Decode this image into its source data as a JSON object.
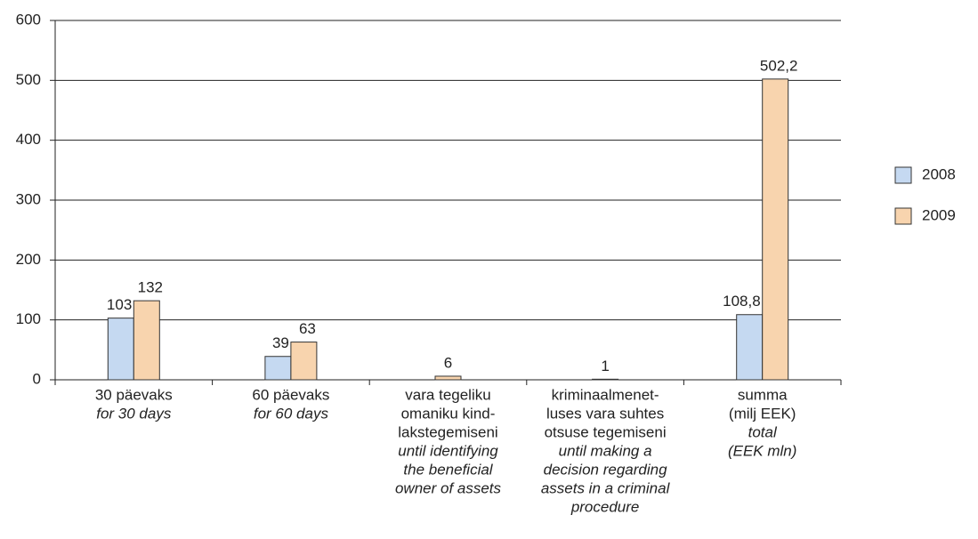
{
  "chart_data": {
    "type": "bar",
    "categories": [
      {
        "lines": [
          "30 päevaks"
        ],
        "italic_lines": [
          "for 30 days"
        ]
      },
      {
        "lines": [
          "60 päevaks"
        ],
        "italic_lines": [
          "for 60 days"
        ]
      },
      {
        "lines": [
          "vara tegeliku",
          "omaniku kind-",
          "lakstegemiseni"
        ],
        "italic_lines": [
          "until identifying",
          "the beneficial",
          "owner of assets"
        ]
      },
      {
        "lines": [
          "kriminaalmenet-",
          "luses vara suhtes",
          "otsuse tegemiseni"
        ],
        "italic_lines": [
          "until making a",
          "decision regarding",
          "assets in a criminal",
          "procedure"
        ]
      },
      {
        "lines": [
          "summa",
          "(milj EEK)"
        ],
        "italic_lines": [
          "total",
          "(EEK mln)"
        ]
      }
    ],
    "series": [
      {
        "name": "2008",
        "color": "#c5d9f1",
        "values": [
          103,
          39,
          null,
          null,
          108.8
        ],
        "value_labels": [
          "103",
          "39",
          null,
          null,
          "108,8"
        ]
      },
      {
        "name": "2009",
        "color": "#f8d4ae",
        "values": [
          132,
          63,
          6,
          1,
          502.2
        ],
        "value_labels": [
          "132",
          "63",
          "6",
          "1",
          "502,2"
        ]
      }
    ],
    "ylim": [
      0,
      600
    ],
    "yticks": [
      0,
      100,
      200,
      300,
      400,
      500,
      600
    ],
    "grid": true,
    "legend": "right"
  }
}
